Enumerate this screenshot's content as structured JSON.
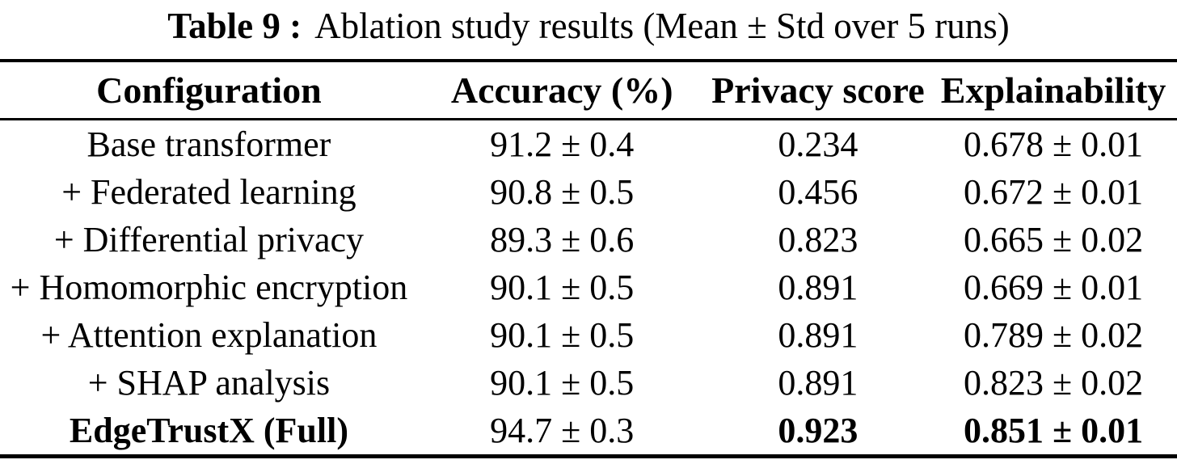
{
  "caption": {
    "label": "Table 9 :",
    "text": "Ablation study results (Mean ± Std over 5 runs)"
  },
  "table": {
    "headers": [
      "Configuration",
      "Accuracy (%)",
      "Privacy score",
      "Explainability"
    ],
    "rows": [
      {
        "configuration": "Base transformer",
        "accuracy": "91.2 ± 0.4",
        "privacy_score": "0.234",
        "explainability": "0.678 ± 0.01"
      },
      {
        "configuration": "+ Federated learning",
        "accuracy": "90.8 ± 0.5",
        "privacy_score": "0.456",
        "explainability": "0.672 ± 0.01"
      },
      {
        "configuration": "+ Differential privacy",
        "accuracy": "89.3 ± 0.6",
        "privacy_score": "0.823",
        "explainability": "0.665 ± 0.02"
      },
      {
        "configuration": "+ Homomorphic encryption",
        "accuracy": "90.1 ± 0.5",
        "privacy_score": "0.891",
        "explainability": "0.669 ± 0.01"
      },
      {
        "configuration": "+ Attention explanation",
        "accuracy": "90.1 ± 0.5",
        "privacy_score": "0.891",
        "explainability": "0.789 ± 0.02"
      },
      {
        "configuration": "+ SHAP analysis",
        "accuracy": "90.1 ± 0.5",
        "privacy_score": "0.891",
        "explainability": "0.823 ± 0.02"
      },
      {
        "configuration": "EdgeTrustX (Full)",
        "accuracy": "94.7 ± 0.3",
        "privacy_score": "0.923",
        "explainability": "0.851 ± 0.01"
      }
    ],
    "emphasis": {
      "bold_row_index": 6,
      "bold_cells": [
        "configuration",
        "privacy_score",
        "explainability"
      ]
    }
  },
  "colors": {
    "text": "#000000",
    "background": "#ffffff",
    "rule": "#000000"
  }
}
